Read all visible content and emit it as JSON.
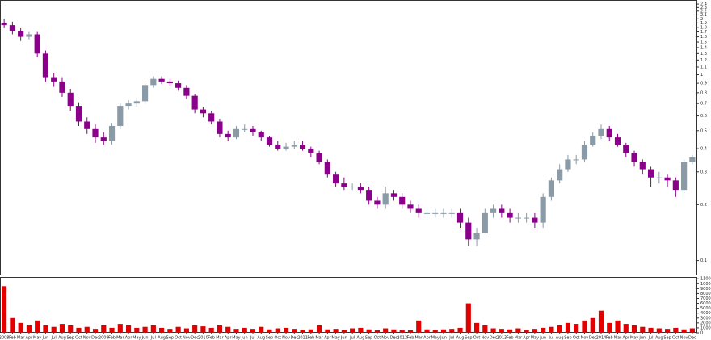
{
  "chart_data": [
    {
      "type": "candlestick",
      "log_scale": true,
      "up_color": "#8a9aa6",
      "down_color": "#8b008b",
      "categories": [
        "2008",
        "Feb",
        "Mar",
        "Apr",
        "May",
        "Jun",
        "Jul",
        "Aug",
        "Sep",
        "Oct",
        "Nov",
        "Dec",
        "2009",
        "Feb",
        "Mar",
        "Apr",
        "May",
        "Jun",
        "Jul",
        "Aug",
        "Sep",
        "Oct",
        "Nov",
        "Dec",
        "2010",
        "Feb",
        "Mar",
        "Apr",
        "May",
        "Jun",
        "Jul",
        "Aug",
        "Sep",
        "Oct",
        "Nov",
        "Dec",
        "2011",
        "Feb",
        "Mar",
        "Apr",
        "May",
        "Jun",
        "Jul",
        "Aug",
        "Sep",
        "Oct",
        "Nov",
        "Dec",
        "2012",
        "Feb",
        "Mar",
        "Apr",
        "May",
        "Jun",
        "Jul",
        "Aug",
        "Sep",
        "Oct",
        "Nov",
        "Dec",
        "2013",
        "Feb",
        "Mar",
        "Apr",
        "May",
        "Jun",
        "Jul",
        "Aug",
        "Sep",
        "Oct",
        "Nov",
        "Dec",
        "2014",
        "Feb",
        "Mar",
        "Apr",
        "May",
        "Jun",
        "Jul",
        "Aug",
        "Sep",
        "Oct",
        "Nov",
        "Dec"
      ],
      "open": [
        1.9,
        1.85,
        1.72,
        1.6,
        1.65,
        1.3,
        0.97,
        0.92,
        0.8,
        0.68,
        0.56,
        0.51,
        0.46,
        0.44,
        0.53,
        0.68,
        0.7,
        0.72,
        0.88,
        0.95,
        0.92,
        0.9,
        0.85,
        0.77,
        0.65,
        0.62,
        0.56,
        0.48,
        0.46,
        0.51,
        0.51,
        0.49,
        0.46,
        0.42,
        0.4,
        0.41,
        0.42,
        0.4,
        0.38,
        0.34,
        0.29,
        0.26,
        0.25,
        0.25,
        0.24,
        0.21,
        0.2,
        0.23,
        0.22,
        0.2,
        0.19,
        0.18,
        0.18,
        0.18,
        0.18,
        0.18,
        0.16,
        0.13,
        0.14,
        0.18,
        0.19,
        0.18,
        0.17,
        0.17,
        0.17,
        0.16,
        0.22,
        0.27,
        0.31,
        0.35,
        0.35,
        0.42,
        0.47,
        0.51,
        0.46,
        0.42,
        0.38,
        0.34,
        0.31,
        0.28,
        0.28,
        0.27,
        0.24,
        0.34
      ],
      "high": [
        2.0,
        1.93,
        1.78,
        1.7,
        1.7,
        1.35,
        1.02,
        0.97,
        0.84,
        0.71,
        0.59,
        0.54,
        0.49,
        0.55,
        0.7,
        0.73,
        0.75,
        0.9,
        0.98,
        0.98,
        0.95,
        0.93,
        0.88,
        0.79,
        0.67,
        0.64,
        0.58,
        0.5,
        0.53,
        0.54,
        0.53,
        0.5,
        0.47,
        0.44,
        0.43,
        0.44,
        0.44,
        0.41,
        0.39,
        0.35,
        0.3,
        0.28,
        0.26,
        0.26,
        0.25,
        0.22,
        0.25,
        0.24,
        0.23,
        0.21,
        0.2,
        0.19,
        0.19,
        0.19,
        0.19,
        0.19,
        0.17,
        0.15,
        0.19,
        0.2,
        0.2,
        0.19,
        0.18,
        0.18,
        0.18,
        0.23,
        0.28,
        0.33,
        0.37,
        0.37,
        0.44,
        0.49,
        0.54,
        0.53,
        0.48,
        0.43,
        0.39,
        0.35,
        0.32,
        0.3,
        0.29,
        0.28,
        0.35,
        0.37
      ],
      "low": [
        1.78,
        1.65,
        1.52,
        1.55,
        1.24,
        0.92,
        0.86,
        0.76,
        0.64,
        0.53,
        0.48,
        0.43,
        0.42,
        0.42,
        0.51,
        0.65,
        0.67,
        0.7,
        0.85,
        0.89,
        0.87,
        0.82,
        0.74,
        0.62,
        0.59,
        0.54,
        0.46,
        0.44,
        0.45,
        0.49,
        0.47,
        0.44,
        0.41,
        0.39,
        0.39,
        0.4,
        0.39,
        0.36,
        0.33,
        0.28,
        0.25,
        0.24,
        0.24,
        0.23,
        0.2,
        0.19,
        0.19,
        0.21,
        0.19,
        0.18,
        0.17,
        0.17,
        0.17,
        0.17,
        0.17,
        0.15,
        0.12,
        0.12,
        0.14,
        0.17,
        0.17,
        0.16,
        0.16,
        0.16,
        0.15,
        0.15,
        0.21,
        0.26,
        0.3,
        0.33,
        0.34,
        0.41,
        0.45,
        0.44,
        0.41,
        0.36,
        0.32,
        0.29,
        0.25,
        0.26,
        0.25,
        0.22,
        0.23,
        0.33
      ],
      "close": [
        1.85,
        1.72,
        1.6,
        1.65,
        1.3,
        0.97,
        0.92,
        0.8,
        0.68,
        0.56,
        0.51,
        0.46,
        0.44,
        0.53,
        0.68,
        0.7,
        0.72,
        0.88,
        0.95,
        0.92,
        0.9,
        0.85,
        0.77,
        0.65,
        0.62,
        0.56,
        0.48,
        0.46,
        0.51,
        0.51,
        0.49,
        0.46,
        0.42,
        0.4,
        0.41,
        0.42,
        0.4,
        0.38,
        0.34,
        0.29,
        0.26,
        0.25,
        0.25,
        0.24,
        0.21,
        0.2,
        0.23,
        0.22,
        0.2,
        0.19,
        0.18,
        0.18,
        0.18,
        0.18,
        0.18,
        0.16,
        0.13,
        0.14,
        0.18,
        0.19,
        0.18,
        0.17,
        0.17,
        0.17,
        0.16,
        0.22,
        0.27,
        0.31,
        0.35,
        0.35,
        0.42,
        0.47,
        0.51,
        0.46,
        0.42,
        0.38,
        0.34,
        0.31,
        0.28,
        0.28,
        0.27,
        0.24,
        0.34,
        0.36
      ],
      "ylim": [
        0.084,
        2.5
      ],
      "yticks": [
        0.1,
        0.2,
        0.3,
        0.4,
        0.5,
        0.6,
        0.7,
        0.8,
        0.9,
        1,
        1.1,
        1.2,
        1.3,
        1.4,
        1.5,
        1.6,
        1.7,
        1.8,
        1.9,
        2,
        2.1,
        2.2,
        2.3,
        2.4
      ]
    },
    {
      "type": "bar",
      "color": "#e00000",
      "values": [
        9500,
        3000,
        2000,
        1500,
        2500,
        1500,
        1200,
        1800,
        1500,
        1000,
        1200,
        800,
        1500,
        1000,
        1800,
        1500,
        1000,
        1200,
        1500,
        1000,
        800,
        1200,
        900,
        1500,
        1300,
        1000,
        1500,
        1200,
        800,
        1000,
        800,
        1200,
        700,
        900,
        1000,
        800,
        600,
        700,
        1500,
        700,
        800,
        600,
        900,
        1000,
        700,
        500,
        900,
        700,
        600,
        500,
        2500,
        700,
        600,
        700,
        800,
        1000,
        6000,
        2000,
        1500,
        900,
        800,
        700,
        900,
        600,
        800,
        1000,
        1200,
        1500,
        2000,
        1800,
        2500,
        3000,
        4500,
        2000,
        2500,
        1800,
        1500,
        1200,
        1000,
        900,
        800,
        1000,
        700,
        900
      ],
      "ylim": [
        0,
        11200
      ],
      "yticks": [
        0,
        1000,
        2000,
        3000,
        4000,
        5000,
        6000,
        7000,
        8000,
        9000,
        10000,
        11000
      ]
    }
  ]
}
